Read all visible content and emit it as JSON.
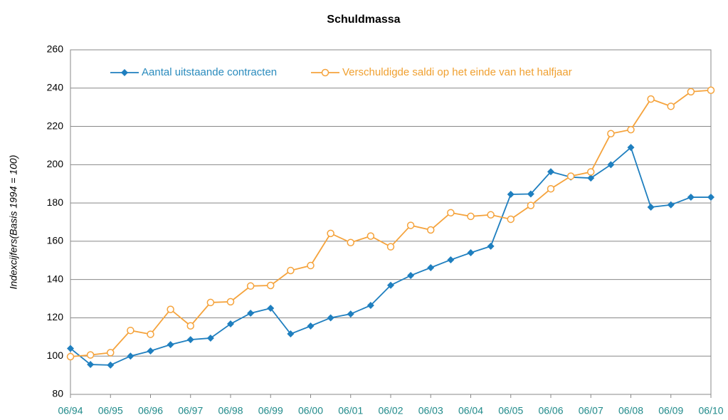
{
  "chart_data": {
    "type": "line",
    "title": "Schuldmassa",
    "y_label": "Indexcijfers(Basis 1994 = 100)",
    "categories": [
      "06/94",
      null,
      "06/95",
      null,
      "06/96",
      null,
      "06/97",
      null,
      "06/98",
      null,
      "06/99",
      null,
      "06/00",
      null,
      "06/01",
      null,
      "06/02",
      null,
      "06/03",
      null,
      "06/04",
      null,
      "06/05",
      null,
      "06/06",
      null,
      "06/07",
      null,
      "06/08",
      null,
      "06/09",
      null,
      "06/10"
    ],
    "series": [
      {
        "name": "Aantal uitstaande contracten",
        "color": "#1f7fbf",
        "marker": "diamond",
        "values": [
          104,
          95.6,
          95.3,
          100,
          102.7,
          106,
          108.6,
          109.4,
          116.8,
          122.4,
          125,
          111.6,
          115.7,
          120,
          122,
          126.5,
          137,
          142.1,
          146.2,
          150.3,
          154,
          157.4,
          184.5,
          184.7,
          196.3,
          193.5,
          193,
          200,
          209,
          177.8,
          179,
          183,
          183
        ]
      },
      {
        "name": "Verschuldigde saldi op het einde van het halfjaar",
        "color": "#f5a33c",
        "marker": "circle",
        "values": [
          99.7,
          100.6,
          101.8,
          113.4,
          111.4,
          124.4,
          115.8,
          128,
          128.4,
          136.6,
          136.9,
          144.7,
          147.3,
          164.1,
          159.3,
          162.7,
          157.1,
          168.3,
          165.9,
          174.9,
          173,
          173.8,
          171.5,
          178.7,
          187.4,
          194,
          196.2,
          216.2,
          218.3,
          234.3,
          230.5,
          238.1,
          238.9
        ]
      }
    ],
    "ylim": [
      80,
      260
    ],
    "yticks": [
      80,
      100,
      120,
      140,
      160,
      180,
      200,
      220,
      240,
      260
    ],
    "grid": true
  }
}
